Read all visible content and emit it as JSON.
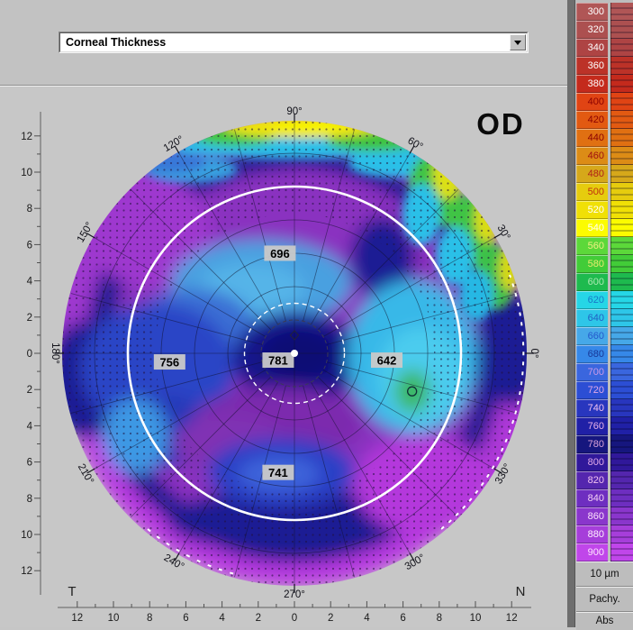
{
  "view_selector": {
    "value": "Corneal Thickness"
  },
  "map": {
    "eye_label": "OD",
    "temporal_label": "T",
    "nasal_label": "N",
    "degree_labels": [
      {
        "deg": 0,
        "label": "0°"
      },
      {
        "deg": 30,
        "label": "30°"
      },
      {
        "deg": 60,
        "label": "60°"
      },
      {
        "deg": 90,
        "label": "90°"
      },
      {
        "deg": 120,
        "label": "120°"
      },
      {
        "deg": 150,
        "label": "150°"
      },
      {
        "deg": 180,
        "label": "180°"
      },
      {
        "deg": 210,
        "label": "210°"
      },
      {
        "deg": 240,
        "label": "240°"
      },
      {
        "deg": 270,
        "label": "270°"
      },
      {
        "deg": 300,
        "label": "300°"
      },
      {
        "deg": 330,
        "label": "330°"
      }
    ],
    "y_axis_tick_labels": [
      12,
      10,
      8,
      6,
      4,
      2,
      0,
      2,
      4,
      6,
      8,
      10,
      12
    ],
    "x_axis_tick_labels": [
      12,
      10,
      8,
      6,
      4,
      2,
      0,
      2,
      4,
      6,
      8,
      10,
      12
    ]
  },
  "scale": {
    "tick_unit_label": "10 µm",
    "map_type_label": "Pachy.",
    "mode_label": "Abs",
    "bands": [
      {
        "value": "300",
        "bg": "#b05656",
        "fg": "#ffffff"
      },
      {
        "value": "320",
        "bg": "#ac5050",
        "fg": "#ffffff"
      },
      {
        "value": "340",
        "bg": "#ae4444",
        "fg": "#ffffff"
      },
      {
        "value": "360",
        "bg": "#bc3228",
        "fg": "#ffffff"
      },
      {
        "value": "380",
        "bg": "#c42a1c",
        "fg": "#ffffff"
      },
      {
        "value": "400",
        "bg": "#e04414",
        "fg": "#8b0000"
      },
      {
        "value": "420",
        "bg": "#e25a12",
        "fg": "#8b0000"
      },
      {
        "value": "440",
        "bg": "#e07012",
        "fg": "#8b0000"
      },
      {
        "value": "460",
        "bg": "#dc8c16",
        "fg": "#a01010"
      },
      {
        "value": "480",
        "bg": "#d6a81a",
        "fg": "#b02018"
      },
      {
        "value": "500",
        "bg": "#e6cc0e",
        "fg": "#c03010"
      },
      {
        "value": "520",
        "bg": "#f0e006",
        "fg": "#ffffff"
      },
      {
        "value": "540",
        "bg": "#fcfc00",
        "fg": "#ffffff"
      },
      {
        "value": "560",
        "bg": "#5cd83a",
        "fg": "#f0f080"
      },
      {
        "value": "580",
        "bg": "#42cc38",
        "fg": "#e8ec6c"
      },
      {
        "value": "600",
        "bg": "#1eba4e",
        "fg": "#a8e8b0"
      },
      {
        "value": "620",
        "bg": "#26d6e6",
        "fg": "#1878c8"
      },
      {
        "value": "640",
        "bg": "#2ec6e8",
        "fg": "#2060c4"
      },
      {
        "value": "660",
        "bg": "#46a8e8",
        "fg": "#2458cc"
      },
      {
        "value": "680",
        "bg": "#3688e8",
        "fg": "#183898"
      },
      {
        "value": "700",
        "bg": "#3a66de",
        "fg": "#c898e8"
      },
      {
        "value": "720",
        "bg": "#2c4ed4",
        "fg": "#e0a8e8"
      },
      {
        "value": "740",
        "bg": "#2836be",
        "fg": "#f0c0f0"
      },
      {
        "value": "760",
        "bg": "#2020a6",
        "fg": "#e8b0e8"
      },
      {
        "value": "780",
        "bg": "#16167e",
        "fg": "#d8a0d8"
      },
      {
        "value": "800",
        "bg": "#30189a",
        "fg": "#e0a8e8"
      },
      {
        "value": "820",
        "bg": "#5426ae",
        "fg": "#f0c0f0"
      },
      {
        "value": "840",
        "bg": "#6e2ec0",
        "fg": "#f4d0f4"
      },
      {
        "value": "860",
        "bg": "#8a36cc",
        "fg": "#fce0fc"
      },
      {
        "value": "880",
        "bg": "#a63eda",
        "fg": "#fff0ff"
      },
      {
        "value": "900",
        "bg": "#c046ea",
        "fg": "#ffe4ff"
      }
    ]
  },
  "chart_data": {
    "type": "heatmap",
    "title": "Corneal Thickness",
    "eye": "OD",
    "unit": "µm",
    "colorbar": {
      "min": 300,
      "max": 900,
      "step": 20,
      "tick_unit": "10 µm",
      "map_type": "Pachy.",
      "mode": "Abs"
    },
    "axis": {
      "range": [
        -12,
        12
      ],
      "tick_step": 2,
      "temporal_side": "T",
      "nasal_side": "N"
    },
    "polar_grid_deg": [
      0,
      30,
      60,
      90,
      120,
      150,
      180,
      210,
      240,
      270,
      300,
      330
    ],
    "labeled_points": [
      {
        "value": 696,
        "x": -0.8,
        "y": 5.5
      },
      {
        "value": 756,
        "x": -6.9,
        "y": -0.5
      },
      {
        "value": 781,
        "x": -0.9,
        "y": -0.4
      },
      {
        "value": 642,
        "x": 5.1,
        "y": -0.4
      },
      {
        "value": 741,
        "x": -0.9,
        "y": -6.6
      }
    ],
    "markers": {
      "apex_dot": {
        "x": 0.0,
        "y": 0.0
      },
      "thinnest_circle": {
        "x": 6.5,
        "y": -2.1
      },
      "diamond": {
        "x": 0.0,
        "y": 1.0
      }
    }
  }
}
